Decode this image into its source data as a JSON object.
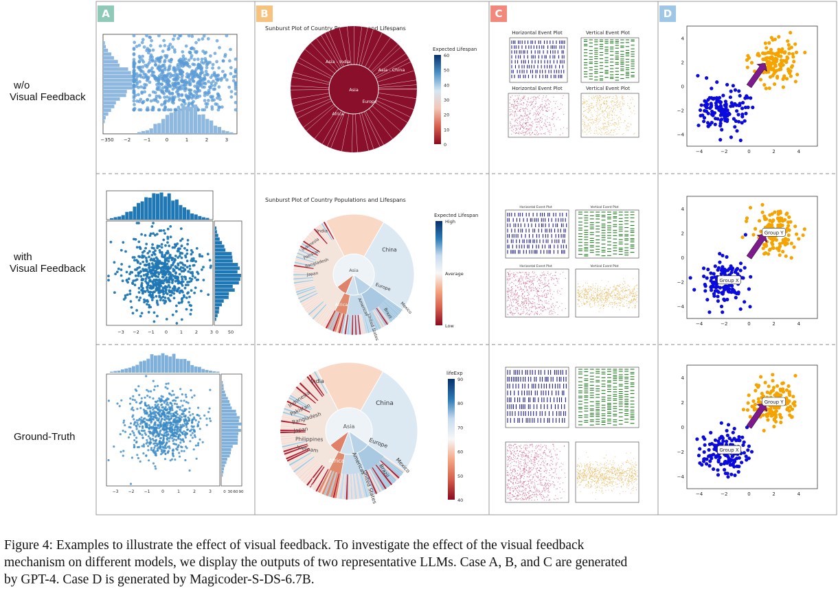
{
  "row_labels": [
    {
      "line1": "w/o",
      "line2": "Visual Feedback"
    },
    {
      "line1": "with",
      "line2": "Visual Feedback"
    },
    {
      "line1": "",
      "line2": "Ground-Truth"
    }
  ],
  "panels": [
    {
      "letter": "A",
      "color": "#8fcab9"
    },
    {
      "letter": "B",
      "color": "#f6c27e"
    },
    {
      "letter": "C",
      "color": "#f2877c"
    },
    {
      "letter": "D",
      "color": "#9ec6e6"
    }
  ],
  "panel_b": {
    "title": "Sunburst Plot of Country Populations and Lifespans",
    "rows": [
      {
        "colorbar_title": "Expected Lifespan",
        "colorbar_ticks": [
          "60",
          "50",
          "40",
          "30",
          "20",
          "10",
          "0"
        ],
        "center": "Asia",
        "inner": [
          "Asia - India",
          "Asia - China",
          "Europe",
          "Africa"
        ]
      },
      {
        "colorbar_title": "Expected Lifespan",
        "colorbar_ticks": [
          "High",
          "Average",
          "Low"
        ],
        "center": "Asia",
        "inner": [
          "India",
          "China",
          "Europe",
          "Africa",
          "Americas"
        ],
        "countries": [
          "Indonesia",
          "Pakistan",
          "Bangladesh",
          "Japan",
          "United States",
          "Brazil",
          "Mexico"
        ]
      },
      {
        "colorbar_title": "lifeExp",
        "colorbar_ticks": [
          "90",
          "80",
          "70",
          "60",
          "50",
          "40"
        ],
        "center": "Asia",
        "inner": [
          "India",
          "China",
          "Europe",
          "Africa",
          "Americas"
        ],
        "countries": [
          "Indonesia",
          "Pakistan",
          "Bangladesh",
          "Japan",
          "Philippines",
          "Vietnam",
          "United States",
          "Brazil",
          "Mexico",
          "Nigeria"
        ]
      }
    ]
  },
  "panel_c": {
    "row1_titles": [
      "Horizontal Event Plot",
      "Vertical Event Plot",
      "Horizontal Event Plot",
      "Vertical Event Plot"
    ],
    "row2_titles": [
      "Horizontal Event Plot",
      "Vertical Event Plot",
      "Horizontal Event Plot",
      "Vertical Event Plot"
    ]
  },
  "panel_d": {
    "labels": [
      "Group X",
      "Group Y"
    ],
    "ticks": [
      "4",
      "2",
      "0",
      "−2",
      "−4"
    ],
    "xticks": [
      "−4",
      "−2",
      "0",
      "2",
      "4"
    ],
    "colors": {
      "group_x": "#0a0adc",
      "group_y": "#f5a300",
      "arrow": "#7d1a8c"
    }
  },
  "panel_a": {
    "colors": {
      "row1": "#5b9bd5",
      "row2": "#1f77b4",
      "row3": "#3a8ac6"
    },
    "row1_xticks": [
      "−350",
      "−2",
      "−1",
      "0",
      "1",
      "2",
      "3"
    ],
    "row2_xticks": [
      "−3",
      "−2",
      "−1",
      "0",
      "1",
      "2",
      "3"
    ],
    "row2_right_ticks": [
      "0",
      "50"
    ],
    "row3_right_ticks": [
      "0",
      "30",
      "60",
      "90"
    ]
  },
  "caption": {
    "line1": "Figure 4: Examples to illustrate the effect of visual feedback. To investigate the effect of the visual feedback",
    "line2": "mechanism on different models, we display the outputs of two representative LLMs. Case A, B, and C are generated",
    "line3": "by GPT-4. Case D is generated by Magicoder-S-DS-6.7B."
  }
}
